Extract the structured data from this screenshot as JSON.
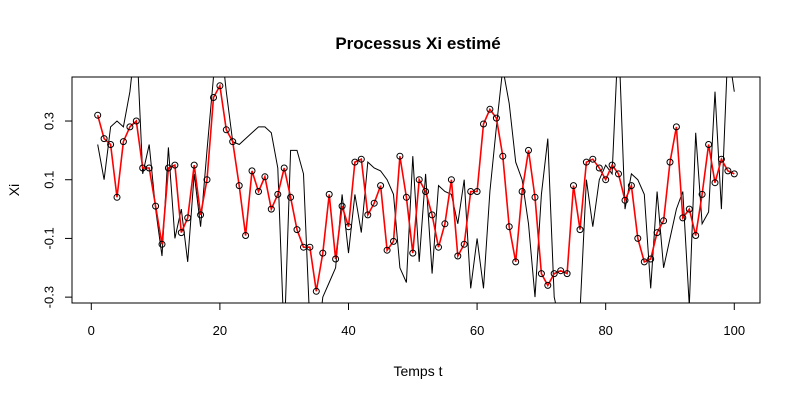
{
  "chart_data": {
    "type": "line",
    "title": "Processus Xi estimé",
    "xlabel": "Temps t",
    "ylabel": "Xi",
    "xlim": [
      -3,
      104
    ],
    "ylim": [
      -0.32,
      0.45
    ],
    "x_ticks": [
      0,
      20,
      40,
      60,
      80,
      100
    ],
    "y_ticks": [
      -0.3,
      -0.1,
      0.1,
      0.3
    ],
    "x_tick_labels": [
      "0",
      "20",
      "40",
      "60",
      "80",
      "100"
    ],
    "y_tick_labels": [
      "-0.3",
      "-0.1",
      "0.1",
      "0.3"
    ],
    "grid": false,
    "legend": "none",
    "series": [
      {
        "style": "black-line",
        "color": "#000000",
        "x": [
          1,
          2,
          3,
          4,
          5,
          6,
          7,
          8,
          9,
          10,
          11,
          12,
          13,
          14,
          15,
          16,
          17,
          18,
          19,
          20,
          21,
          22,
          23,
          24,
          25,
          26,
          27,
          28,
          29,
          30,
          31,
          32,
          33,
          34,
          35,
          36,
          37,
          38,
          39,
          40,
          41,
          42,
          43,
          44,
          45,
          46,
          47,
          48,
          49,
          50,
          51,
          52,
          53,
          54,
          55,
          56,
          57,
          58,
          59,
          60,
          61,
          62,
          63,
          64,
          65,
          66,
          67,
          68,
          69,
          70,
          71,
          72,
          73,
          74,
          75,
          76,
          77,
          78,
          79,
          80,
          81,
          82,
          83,
          84,
          85,
          86,
          87,
          88,
          89,
          90,
          91,
          92,
          93,
          94,
          95,
          96,
          97,
          98,
          99,
          100
        ],
        "values": [
          0.22,
          0.1,
          0.28,
          0.3,
          0.28,
          0.4,
          0.6,
          0.12,
          0.22,
          0.0,
          -0.16,
          0.21,
          -0.1,
          0.0,
          -0.18,
          0.12,
          -0.06,
          0.2,
          0.45,
          0.6,
          0.4,
          0.23,
          0.22,
          0.24,
          0.26,
          0.28,
          0.28,
          0.26,
          0.14,
          -0.45,
          0.2,
          0.2,
          0.12,
          -0.4,
          -0.5,
          -0.3,
          -0.25,
          -0.2,
          0.05,
          -0.15,
          0.05,
          -0.08,
          0.16,
          0.14,
          0.13,
          0.1,
          0.05,
          -0.2,
          -0.25,
          0.18,
          -0.18,
          0.12,
          -0.22,
          0.08,
          0.06,
          0.05,
          -0.05,
          0.1,
          -0.27,
          -0.1,
          -0.27,
          0.06,
          0.28,
          0.48,
          0.36,
          0.16,
          0.1,
          -0.05,
          -0.3,
          0.05,
          0.24,
          -0.3,
          -0.4,
          -0.45,
          -0.4,
          -0.35,
          0.1,
          -0.06,
          0.1,
          0.15,
          0.12,
          0.6,
          0.0,
          0.12,
          0.1,
          0.05,
          -0.27,
          0.06,
          -0.2,
          -0.1,
          0.0,
          0.06,
          -0.33,
          0.26,
          -0.05,
          -0.01,
          0.4,
          0.0,
          0.55,
          0.4
        ]
      },
      {
        "style": "red-line-with-circles",
        "color": "#ff0000",
        "x": [
          1,
          2,
          3,
          4,
          5,
          6,
          7,
          8,
          9,
          10,
          11,
          12,
          13,
          14,
          15,
          16,
          17,
          18,
          19,
          20,
          21,
          22,
          23,
          24,
          25,
          26,
          27,
          28,
          29,
          30,
          31,
          32,
          33,
          34,
          35,
          36,
          37,
          38,
          39,
          40,
          41,
          42,
          43,
          44,
          45,
          46,
          47,
          48,
          49,
          50,
          51,
          52,
          53,
          54,
          55,
          56,
          57,
          58,
          59,
          60,
          61,
          62,
          63,
          64,
          65,
          66,
          67,
          68,
          69,
          70,
          71,
          72,
          73,
          74,
          75,
          76,
          77,
          78,
          79,
          80,
          81,
          82,
          83,
          84,
          85,
          86,
          87,
          88,
          89,
          90,
          91,
          92,
          93,
          94,
          95,
          96,
          97,
          98,
          99,
          100
        ],
        "values": [
          0.32,
          0.24,
          0.22,
          0.04,
          0.23,
          0.28,
          0.3,
          0.14,
          0.14,
          0.01,
          -0.12,
          0.14,
          0.15,
          -0.08,
          -0.03,
          0.15,
          -0.02,
          0.1,
          0.38,
          0.42,
          0.27,
          0.23,
          0.08,
          -0.09,
          0.13,
          0.06,
          0.11,
          0.0,
          0.05,
          0.14,
          0.04,
          -0.07,
          -0.13,
          -0.13,
          -0.28,
          -0.15,
          0.05,
          -0.17,
          0.01,
          -0.06,
          0.16,
          0.17,
          -0.02,
          0.02,
          0.08,
          -0.14,
          -0.11,
          0.18,
          0.04,
          -0.15,
          0.1,
          0.06,
          -0.02,
          -0.13,
          -0.05,
          0.1,
          -0.16,
          -0.12,
          0.06,
          0.06,
          0.29,
          0.34,
          0.31,
          0.18,
          -0.06,
          -0.18,
          0.06,
          0.2,
          0.04,
          -0.22,
          -0.26,
          -0.22,
          -0.21,
          -0.22,
          0.08,
          -0.07,
          0.16,
          0.17,
          0.14,
          0.1,
          0.15,
          0.12,
          0.03,
          0.08,
          -0.1,
          -0.18,
          -0.17,
          -0.08,
          -0.04,
          0.16,
          0.28,
          -0.03,
          0.0,
          -0.09,
          0.05,
          0.22,
          0.09,
          0.17,
          0.13,
          0.12
        ]
      }
    ]
  }
}
